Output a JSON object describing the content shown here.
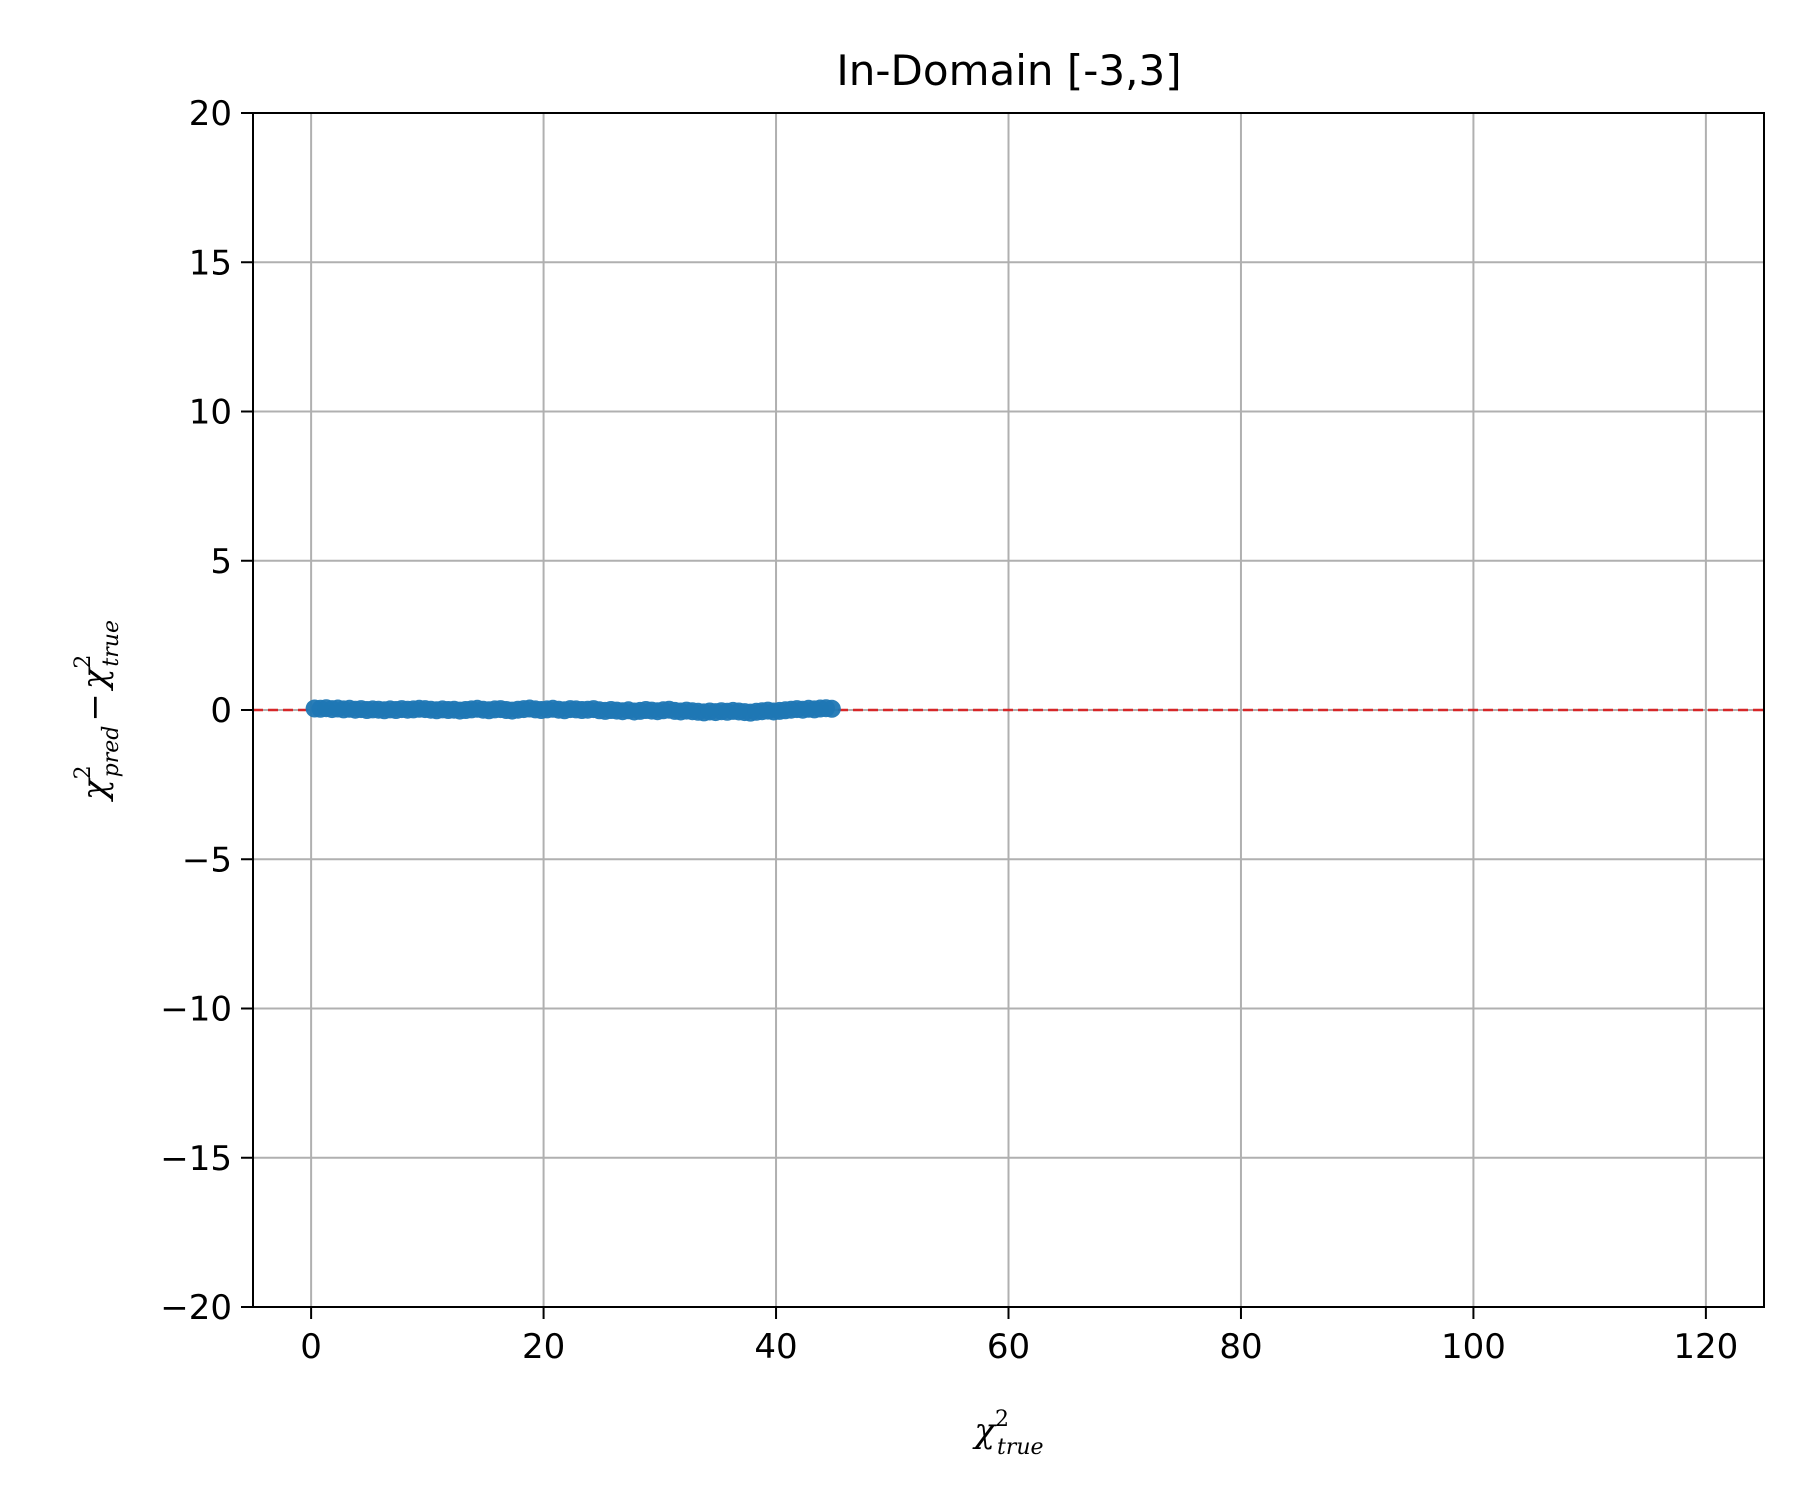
{
  "chart_data": {
    "type": "scatter",
    "title": "In-Domain [-3,3]",
    "xlabel": {
      "base": "χ",
      "sup": "2",
      "sub": "true"
    },
    "ylabel": {
      "a": {
        "base": "χ",
        "sup": "2",
        "sub": "pred"
      },
      "op": "−",
      "b": {
        "base": "χ",
        "sup": "2",
        "sub": "true"
      }
    },
    "xlim": [
      -5,
      125
    ],
    "ylim": [
      -20,
      20
    ],
    "xticks": [
      0,
      20,
      40,
      60,
      80,
      100,
      120
    ],
    "xtick_labels": [
      "0",
      "20",
      "40",
      "60",
      "80",
      "100",
      "120"
    ],
    "yticks": [
      -20,
      -15,
      -10,
      -5,
      0,
      5,
      10,
      15,
      20
    ],
    "ytick_labels": [
      "−20",
      "−15",
      "−10",
      "−5",
      "0",
      "5",
      "10",
      "15",
      "20"
    ],
    "grid": true,
    "reference_line": {
      "y": 0,
      "color": "#d62728",
      "style": "dashed"
    },
    "series": [
      {
        "color": "#1f77b4",
        "x": [
          0.3,
          0.8,
          1.3,
          1.8,
          2.3,
          2.8,
          3.3,
          3.8,
          4.3,
          4.8,
          5.3,
          5.8,
          6.3,
          6.8,
          7.3,
          7.8,
          8.3,
          8.8,
          9.3,
          9.8,
          10.3,
          10.8,
          11.3,
          11.8,
          12.3,
          12.8,
          13.3,
          13.8,
          14.3,
          14.8,
          15.3,
          15.8,
          16.3,
          16.8,
          17.3,
          17.8,
          18.3,
          18.8,
          19.3,
          19.8,
          20.3,
          20.8,
          21.3,
          21.8,
          22.3,
          22.8,
          23.3,
          23.8,
          24.3,
          24.8,
          25.3,
          25.8,
          26.3,
          26.8,
          27.3,
          27.8,
          28.3,
          28.8,
          29.3,
          29.8,
          30.3,
          30.8,
          31.3,
          31.8,
          32.3,
          32.8,
          33.3,
          33.8,
          34.3,
          34.8,
          35.3,
          35.8,
          36.3,
          36.8,
          37.3,
          37.8,
          38.3,
          38.8,
          39.3,
          39.8,
          40.3,
          40.8,
          41.3,
          41.8,
          42.3,
          42.8,
          43.3,
          43.8,
          44.3,
          44.8
        ],
        "y": [
          0.05,
          0.04,
          0.06,
          0.03,
          0.05,
          0.02,
          0.04,
          0.01,
          0.03,
          0.0,
          0.02,
          0.01,
          -0.01,
          0.02,
          0.0,
          0.03,
          0.01,
          0.02,
          0.04,
          0.03,
          0.01,
          -0.01,
          0.02,
          0.0,
          0.01,
          -0.02,
          0.0,
          0.02,
          0.04,
          0.01,
          -0.01,
          0.02,
          0.03,
          0.0,
          -0.02,
          0.01,
          0.03,
          0.05,
          0.02,
          0.0,
          0.02,
          0.04,
          0.01,
          -0.01,
          0.03,
          0.02,
          0.0,
          0.01,
          0.03,
          -0.01,
          -0.03,
          0.0,
          -0.02,
          -0.04,
          -0.01,
          -0.05,
          -0.03,
          0.0,
          -0.02,
          -0.04,
          -0.01,
          0.01,
          -0.03,
          -0.05,
          -0.02,
          -0.04,
          -0.06,
          -0.08,
          -0.05,
          -0.07,
          -0.04,
          -0.06,
          -0.03,
          -0.05,
          -0.07,
          -0.09,
          -0.06,
          -0.04,
          -0.02,
          -0.05,
          -0.03,
          -0.01,
          0.01,
          0.03,
          0.01,
          0.04,
          0.02,
          0.05,
          0.06,
          0.04
        ]
      }
    ]
  }
}
